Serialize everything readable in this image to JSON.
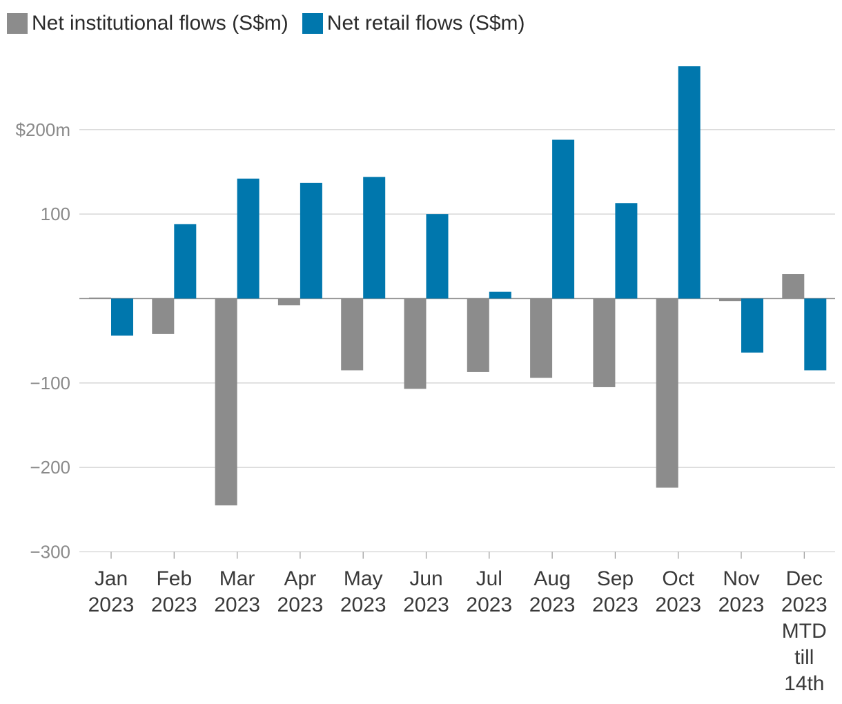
{
  "chart_data": {
    "type": "bar",
    "title": "",
    "xlabel": "",
    "ylabel": "",
    "ylim": [
      -300,
      275
    ],
    "yticks": [
      {
        "value": 200,
        "label": "$200m"
      },
      {
        "value": 100,
        "label": "100"
      },
      {
        "value": 0,
        "label": ""
      },
      {
        "value": -100,
        "label": "−100"
      },
      {
        "value": -200,
        "label": "−200"
      },
      {
        "value": -300,
        "label": "−300"
      }
    ],
    "categories": [
      [
        "Jan",
        "2023"
      ],
      [
        "Feb",
        "2023"
      ],
      [
        "Mar",
        "2023"
      ],
      [
        "Apr",
        "2023"
      ],
      [
        "May",
        "2023"
      ],
      [
        "Jun",
        "2023"
      ],
      [
        "Jul",
        "2023"
      ],
      [
        "Aug",
        "2023"
      ],
      [
        "Sep",
        "2023"
      ],
      [
        "Oct",
        "2023"
      ],
      [
        "Nov",
        "2023"
      ],
      [
        "Dec",
        "2023",
        "MTD",
        "till",
        "14th"
      ]
    ],
    "series": [
      {
        "name": "Net institutional flows (S$m)",
        "color": "#8c8c8c",
        "values": [
          1,
          -42,
          -245,
          -8,
          -85,
          -107,
          -87,
          -94,
          -105,
          -224,
          -3,
          29
        ]
      },
      {
        "name": "Net retail flows (S$m)",
        "color": "#0077ad",
        "values": [
          -44,
          88,
          142,
          137,
          144,
          100,
          8,
          188,
          113,
          275,
          -64,
          -85
        ]
      }
    ],
    "legend_position": "top-left",
    "grid": true
  }
}
